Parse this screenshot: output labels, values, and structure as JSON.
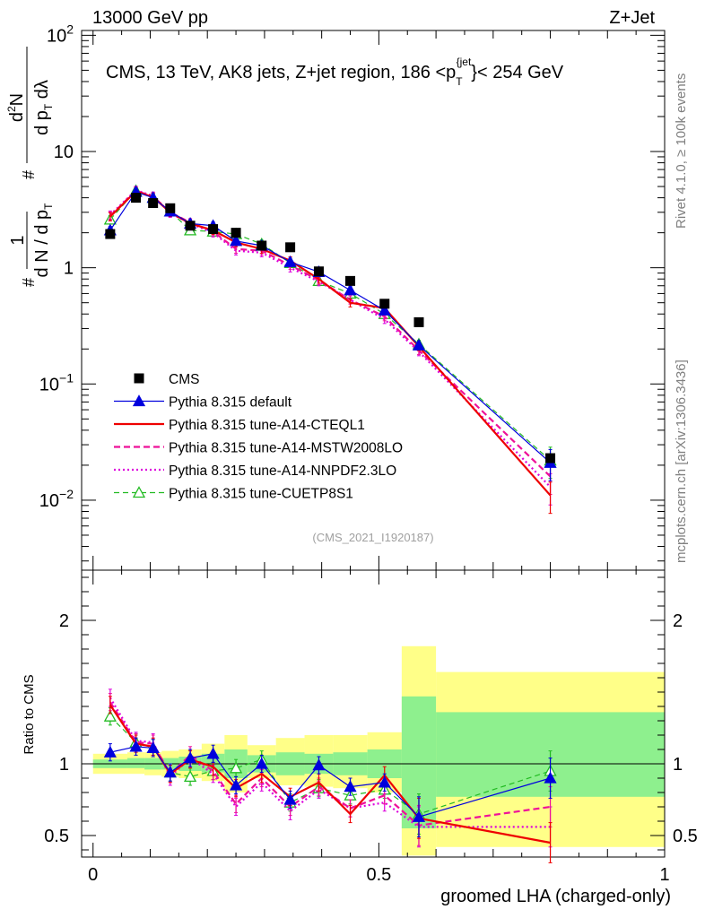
{
  "header": {
    "left": "13000 GeV pp",
    "right": "Z+Jet"
  },
  "side_labels": {
    "rivet": "Rivet 4.1.0, ≥ 100k events",
    "mcplots": "mcplots.cern.ch [arXiv:1306.3436]"
  },
  "colors": {
    "cms": "#000000",
    "default": "#0000dd",
    "cteq": "#ee0000",
    "mstw": "#ee1199",
    "nnpdf": "#dd00dd",
    "cuetp8s1": "#22bb22",
    "band_inner": "#8ef08e",
    "band_outer": "#ffff88"
  },
  "chart_data": [
    {
      "type": "line",
      "panel": "main",
      "title": "CMS, 13 TeV, AK8 jets, Z+jet region, 186 <p_T^{jet}< 254 GeV",
      "watermark": "(CMS_2021_I1920187)",
      "ylabel": "1/(dN/dp_T) d²N/(dp_T dλ)",
      "yscale": "log",
      "ylim": [
        0.0025,
        110
      ],
      "xlim": [
        -0.02,
        1.0
      ],
      "yticks": [
        {
          "value": 100,
          "base": "10",
          "exp": "2"
        },
        {
          "value": 10,
          "label": "10"
        },
        {
          "value": 1,
          "label": "1"
        },
        {
          "value": 0.1,
          "base": "10",
          "exp": "−1"
        },
        {
          "value": 0.01,
          "base": "10",
          "exp": "−2"
        }
      ],
      "x": [
        0.03,
        0.075,
        0.105,
        0.135,
        0.17,
        0.21,
        0.25,
        0.295,
        0.345,
        0.395,
        0.45,
        0.51,
        0.57,
        0.8
      ],
      "series": [
        {
          "key": "cms",
          "name": "CMS",
          "values": [
            1.95,
            4.0,
            3.6,
            3.25,
            2.3,
            2.15,
            2.0,
            1.55,
            1.5,
            0.93,
            0.77,
            0.49,
            0.34,
            0.023
          ]
        },
        {
          "key": "default",
          "name": "Pythia 8.315 default",
          "values": [
            2.1,
            4.5,
            4.0,
            3.05,
            2.4,
            2.3,
            1.7,
            1.55,
            1.12,
            0.92,
            0.64,
            0.43,
            0.215,
            0.021
          ]
        },
        {
          "key": "cteq",
          "name": "Pythia 8.315 tune-A14-CTEQL1",
          "values": [
            2.75,
            4.55,
            4.05,
            3.0,
            2.4,
            2.1,
            1.65,
            1.45,
            1.15,
            0.8,
            0.5,
            0.45,
            0.21,
            0.011
          ]
        },
        {
          "key": "mstw",
          "name": "Pythia 8.315 tune-A14-MSTW2008LO",
          "values": [
            2.8,
            4.6,
            4.1,
            3.0,
            2.45,
            2.05,
            1.45,
            1.4,
            1.05,
            0.78,
            0.53,
            0.38,
            0.195,
            0.016
          ]
        },
        {
          "key": "nnpdf",
          "name": "Pythia 8.315 tune-A14-NNPDF2.3LO",
          "values": [
            2.85,
            4.65,
            4.15,
            2.95,
            2.4,
            2.0,
            1.4,
            1.35,
            1.0,
            0.76,
            0.53,
            0.36,
            0.19,
            0.013
          ]
        },
        {
          "key": "cuetp8s1",
          "name": "Pythia 8.315 tune-CUETP8S1",
          "values": [
            2.6,
            4.6,
            4.0,
            3.05,
            2.1,
            2.05,
            1.95,
            1.6,
            1.1,
            0.77,
            0.6,
            0.4,
            0.22,
            0.022
          ]
        }
      ]
    },
    {
      "type": "line",
      "panel": "ratio",
      "ylabel": "Ratio to CMS",
      "ylim": [
        0.35,
        2.35
      ],
      "xlim": [
        -0.02,
        1.0
      ],
      "xlabel": "groomed LHA (charged-only)",
      "xticks": [
        {
          "value": 0,
          "label": "0"
        },
        {
          "value": 0.5,
          "label": "0.5"
        },
        {
          "value": 1,
          "label": "1"
        }
      ],
      "yticks": [
        {
          "value": 2,
          "label": "2"
        },
        {
          "value": 1,
          "label": "1"
        },
        {
          "value": 0.5,
          "label": "0.5"
        }
      ],
      "bin_edges": [
        0.0,
        0.06,
        0.09,
        0.12,
        0.15,
        0.19,
        0.23,
        0.27,
        0.32,
        0.37,
        0.42,
        0.48,
        0.54,
        0.6,
        1.0
      ],
      "band_inner": [
        [
          0.97,
          1.03
        ],
        [
          0.97,
          1.04
        ],
        [
          0.96,
          1.04
        ],
        [
          0.96,
          1.04
        ],
        [
          0.95,
          1.05
        ],
        [
          0.94,
          1.07
        ],
        [
          0.9,
          1.1
        ],
        [
          0.94,
          1.06
        ],
        [
          0.92,
          1.08
        ],
        [
          0.93,
          1.07
        ],
        [
          0.92,
          1.08
        ],
        [
          0.9,
          1.1
        ],
        [
          0.55,
          1.47
        ],
        [
          0.77,
          1.36
        ]
      ],
      "band_outer": [
        [
          0.93,
          1.07
        ],
        [
          0.93,
          1.08
        ],
        [
          0.92,
          1.08
        ],
        [
          0.91,
          1.09
        ],
        [
          0.9,
          1.1
        ],
        [
          0.88,
          1.14
        ],
        [
          0.8,
          1.2
        ],
        [
          0.9,
          1.13
        ],
        [
          0.85,
          1.18
        ],
        [
          0.84,
          1.2
        ],
        [
          0.83,
          1.2
        ],
        [
          0.8,
          1.22
        ],
        [
          0.36,
          1.82
        ],
        [
          0.42,
          1.64
        ]
      ],
      "x": [
        0.03,
        0.075,
        0.105,
        0.135,
        0.17,
        0.21,
        0.25,
        0.295,
        0.345,
        0.395,
        0.45,
        0.51,
        0.57,
        0.8
      ],
      "series": [
        {
          "key": "default",
          "name": "Pythia 8.315 default",
          "values": [
            1.08,
            1.12,
            1.11,
            0.94,
            1.04,
            1.07,
            0.85,
            1.0,
            0.75,
            0.99,
            0.84,
            0.87,
            0.63,
            0.9
          ]
        },
        {
          "key": "cteq",
          "name": "Pythia 8.315 tune-A14-CTEQL1",
          "values": [
            1.41,
            1.14,
            1.12,
            0.93,
            1.03,
            0.98,
            0.83,
            0.93,
            0.77,
            0.87,
            0.65,
            0.92,
            0.62,
            0.45
          ]
        },
        {
          "key": "mstw",
          "name": "Pythia 8.315 tune-A14-MSTW2008LO",
          "values": [
            1.43,
            1.15,
            1.14,
            0.93,
            1.06,
            0.95,
            0.72,
            0.9,
            0.7,
            0.84,
            0.69,
            0.78,
            0.57,
            0.7
          ]
        },
        {
          "key": "nnpdf",
          "name": "Pythia 8.315 tune-A14-NNPDF2.3LO",
          "values": [
            1.46,
            1.16,
            1.15,
            0.91,
            1.04,
            0.93,
            0.7,
            0.87,
            0.67,
            0.82,
            0.69,
            0.73,
            0.56,
            0.56
          ]
        },
        {
          "key": "cuetp8s1",
          "name": "Pythia 8.315 tune-CUETP8S1",
          "values": [
            1.33,
            1.15,
            1.11,
            0.94,
            0.91,
            0.95,
            0.97,
            1.03,
            0.73,
            0.83,
            0.78,
            0.82,
            0.65,
            0.95
          ]
        }
      ]
    }
  ]
}
